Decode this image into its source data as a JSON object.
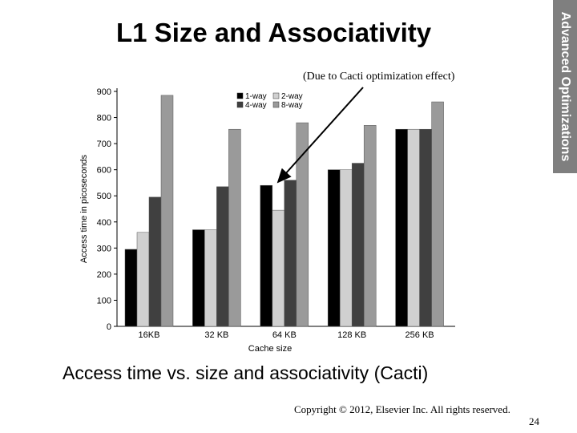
{
  "slide": {
    "title": "L1 Size and Associativity",
    "side_label": "Advanced Optimizations",
    "caption": "Access time vs. size and associativity (Cacti)",
    "copyright": "Copyright © 2012, Elsevier Inc. All rights reserved.",
    "page_number": "24"
  },
  "chart_data": {
    "type": "bar",
    "title": "",
    "annotation": "(Due to Cacti optimization effect)",
    "xlabel": "Cache size",
    "ylabel": "Access time in picoseconds",
    "categories": [
      "16KB",
      "32 KB",
      "64 KB",
      "128 KB",
      "256 KB"
    ],
    "ylim": [
      0,
      900
    ],
    "yticks": [
      0,
      100,
      200,
      300,
      400,
      500,
      600,
      700,
      800,
      900
    ],
    "grid": false,
    "legend_position": "top",
    "series": [
      {
        "name": "1-way",
        "color": "#000000",
        "values": [
          295,
          370,
          540,
          600,
          755
        ]
      },
      {
        "name": "2-way",
        "color": "#d0d0d0",
        "values": [
          360,
          370,
          445,
          600,
          755
        ]
      },
      {
        "name": "4-way",
        "color": "#404040",
        "values": [
          495,
          535,
          560,
          625,
          755
        ]
      },
      {
        "name": "8-way",
        "color": "#9a9a9a",
        "values": [
          885,
          755,
          780,
          770,
          860
        ]
      }
    ]
  }
}
